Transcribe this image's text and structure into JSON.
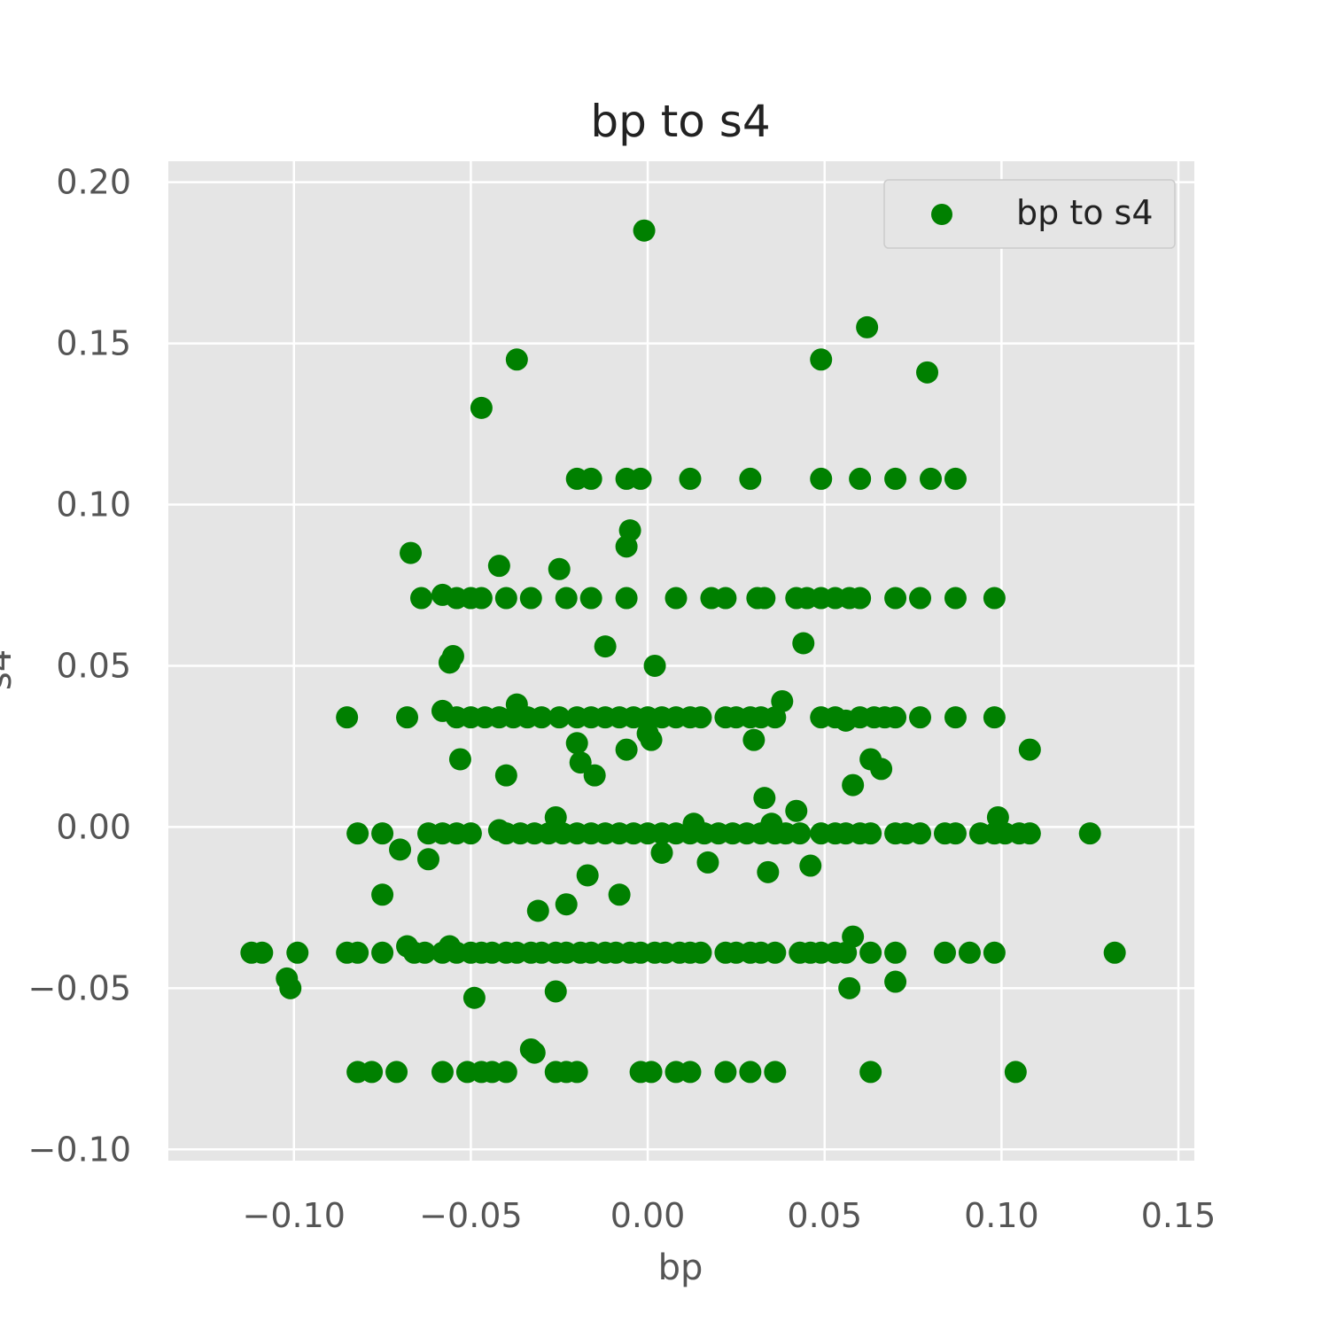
{
  "chart_data": {
    "type": "scatter",
    "title": "bp to s4",
    "xlabel": "bp",
    "ylabel": "s4",
    "xlim": [
      -0.1355,
      0.1545
    ],
    "ylim": [
      -0.1035,
      0.2065
    ],
    "x_ticks": [
      -0.1,
      -0.05,
      0.0,
      0.05,
      0.1,
      0.15
    ],
    "y_ticks": [
      -0.1,
      -0.05,
      0.0,
      0.05,
      0.1,
      0.15,
      0.2
    ],
    "x_tick_labels": [
      "−0.10",
      "−0.05",
      "0.00",
      "0.05",
      "0.10",
      "0.15"
    ],
    "y_tick_labels": [
      "−0.10",
      "−0.05",
      "0.00",
      "0.05",
      "0.10",
      "0.15",
      "0.20"
    ],
    "grid": true,
    "legend_placement": "top-right",
    "colors": {
      "series": "#008000",
      "plot_bg": "#e5e5e5",
      "grid": "#ffffff"
    },
    "series": [
      {
        "name": "bp to s4",
        "points": [
          [
            -0.001,
            0.185
          ],
          [
            0.062,
            0.155
          ],
          [
            -0.037,
            0.145
          ],
          [
            0.049,
            0.145
          ],
          [
            0.079,
            0.141
          ],
          [
            -0.047,
            0.13
          ],
          [
            -0.02,
            0.108
          ],
          [
            -0.016,
            0.108
          ],
          [
            -0.006,
            0.108
          ],
          [
            -0.002,
            0.108
          ],
          [
            0.012,
            0.108
          ],
          [
            0.029,
            0.108
          ],
          [
            0.049,
            0.108
          ],
          [
            0.06,
            0.108
          ],
          [
            0.07,
            0.108
          ],
          [
            0.08,
            0.108
          ],
          [
            0.087,
            0.108
          ],
          [
            -0.005,
            0.092
          ],
          [
            -0.006,
            0.087
          ],
          [
            -0.067,
            0.085
          ],
          [
            -0.042,
            0.081
          ],
          [
            -0.025,
            0.08
          ],
          [
            -0.064,
            0.071
          ],
          [
            -0.058,
            0.072
          ],
          [
            -0.054,
            0.071
          ],
          [
            -0.05,
            0.071
          ],
          [
            -0.047,
            0.071
          ],
          [
            -0.04,
            0.071
          ],
          [
            -0.033,
            0.071
          ],
          [
            -0.023,
            0.071
          ],
          [
            -0.016,
            0.071
          ],
          [
            -0.006,
            0.071
          ],
          [
            0.008,
            0.071
          ],
          [
            0.018,
            0.071
          ],
          [
            0.022,
            0.071
          ],
          [
            0.031,
            0.071
          ],
          [
            0.033,
            0.071
          ],
          [
            0.042,
            0.071
          ],
          [
            0.045,
            0.071
          ],
          [
            0.049,
            0.071
          ],
          [
            0.053,
            0.071
          ],
          [
            0.057,
            0.071
          ],
          [
            0.06,
            0.071
          ],
          [
            0.07,
            0.071
          ],
          [
            0.077,
            0.071
          ],
          [
            0.087,
            0.071
          ],
          [
            0.098,
            0.071
          ],
          [
            -0.012,
            0.056
          ],
          [
            0.044,
            0.057
          ],
          [
            -0.055,
            0.053
          ],
          [
            -0.056,
            0.051
          ],
          [
            0.002,
            0.05
          ],
          [
            0.038,
            0.039
          ],
          [
            -0.037,
            0.038
          ],
          [
            -0.058,
            0.036
          ],
          [
            -0.085,
            0.034
          ],
          [
            -0.068,
            0.034
          ],
          [
            -0.054,
            0.034
          ],
          [
            -0.05,
            0.034
          ],
          [
            -0.046,
            0.034
          ],
          [
            -0.042,
            0.034
          ],
          [
            -0.038,
            0.034
          ],
          [
            -0.034,
            0.034
          ],
          [
            -0.03,
            0.034
          ],
          [
            -0.025,
            0.034
          ],
          [
            -0.02,
            0.034
          ],
          [
            -0.016,
            0.034
          ],
          [
            -0.012,
            0.034
          ],
          [
            -0.008,
            0.034
          ],
          [
            -0.004,
            0.034
          ],
          [
            0.0,
            0.034
          ],
          [
            0.004,
            0.034
          ],
          [
            0.008,
            0.034
          ],
          [
            0.012,
            0.034
          ],
          [
            0.015,
            0.034
          ],
          [
            0.022,
            0.034
          ],
          [
            0.025,
            0.034
          ],
          [
            0.029,
            0.034
          ],
          [
            0.032,
            0.034
          ],
          [
            0.036,
            0.034
          ],
          [
            0.049,
            0.034
          ],
          [
            0.053,
            0.034
          ],
          [
            0.056,
            0.033
          ],
          [
            0.06,
            0.034
          ],
          [
            0.064,
            0.034
          ],
          [
            0.067,
            0.034
          ],
          [
            0.07,
            0.034
          ],
          [
            0.077,
            0.034
          ],
          [
            0.087,
            0.034
          ],
          [
            0.098,
            0.034
          ],
          [
            0.0,
            0.029
          ],
          [
            0.001,
            0.027
          ],
          [
            0.03,
            0.027
          ],
          [
            -0.02,
            0.026
          ],
          [
            -0.006,
            0.024
          ],
          [
            0.108,
            0.024
          ],
          [
            -0.053,
            0.021
          ],
          [
            0.063,
            0.021
          ],
          [
            -0.019,
            0.02
          ],
          [
            0.066,
            0.018
          ],
          [
            -0.04,
            0.016
          ],
          [
            -0.015,
            0.016
          ],
          [
            0.058,
            0.013
          ],
          [
            0.033,
            0.009
          ],
          [
            0.042,
            0.005
          ],
          [
            -0.026,
            0.003
          ],
          [
            0.099,
            0.003
          ],
          [
            0.013,
            0.001
          ],
          [
            0.035,
            0.001
          ],
          [
            -0.042,
            -0.001
          ],
          [
            -0.082,
            -0.002
          ],
          [
            -0.075,
            -0.002
          ],
          [
            -0.062,
            -0.002
          ],
          [
            -0.058,
            -0.002
          ],
          [
            -0.054,
            -0.002
          ],
          [
            -0.05,
            -0.002
          ],
          [
            -0.04,
            -0.002
          ],
          [
            -0.036,
            -0.002
          ],
          [
            -0.032,
            -0.002
          ],
          [
            -0.028,
            -0.002
          ],
          [
            -0.024,
            -0.002
          ],
          [
            -0.02,
            -0.002
          ],
          [
            -0.016,
            -0.002
          ],
          [
            -0.012,
            -0.002
          ],
          [
            -0.008,
            -0.002
          ],
          [
            -0.004,
            -0.002
          ],
          [
            0.0,
            -0.002
          ],
          [
            0.004,
            -0.002
          ],
          [
            0.008,
            -0.002
          ],
          [
            0.012,
            -0.002
          ],
          [
            0.016,
            -0.002
          ],
          [
            0.02,
            -0.002
          ],
          [
            0.024,
            -0.002
          ],
          [
            0.028,
            -0.002
          ],
          [
            0.032,
            -0.002
          ],
          [
            0.036,
            -0.002
          ],
          [
            0.039,
            -0.002
          ],
          [
            0.043,
            -0.002
          ],
          [
            0.049,
            -0.002
          ],
          [
            0.053,
            -0.002
          ],
          [
            0.056,
            -0.002
          ],
          [
            0.06,
            -0.002
          ],
          [
            0.063,
            -0.002
          ],
          [
            0.07,
            -0.002
          ],
          [
            0.073,
            -0.002
          ],
          [
            0.077,
            -0.002
          ],
          [
            0.084,
            -0.002
          ],
          [
            0.087,
            -0.002
          ],
          [
            0.094,
            -0.002
          ],
          [
            0.098,
            -0.002
          ],
          [
            0.101,
            -0.002
          ],
          [
            0.105,
            -0.002
          ],
          [
            0.108,
            -0.002
          ],
          [
            0.125,
            -0.002
          ],
          [
            -0.07,
            -0.007
          ],
          [
            0.004,
            -0.008
          ],
          [
            -0.062,
            -0.01
          ],
          [
            0.017,
            -0.011
          ],
          [
            0.046,
            -0.012
          ],
          [
            0.034,
            -0.014
          ],
          [
            -0.017,
            -0.015
          ],
          [
            -0.008,
            -0.021
          ],
          [
            -0.075,
            -0.021
          ],
          [
            -0.023,
            -0.024
          ],
          [
            -0.031,
            -0.026
          ],
          [
            0.058,
            -0.034
          ],
          [
            -0.112,
            -0.039
          ],
          [
            -0.109,
            -0.039
          ],
          [
            -0.099,
            -0.039
          ],
          [
            -0.085,
            -0.039
          ],
          [
            -0.082,
            -0.039
          ],
          [
            -0.075,
            -0.039
          ],
          [
            -0.068,
            -0.037
          ],
          [
            -0.066,
            -0.039
          ],
          [
            -0.063,
            -0.039
          ],
          [
            -0.058,
            -0.039
          ],
          [
            -0.056,
            -0.037
          ],
          [
            -0.054,
            -0.039
          ],
          [
            -0.05,
            -0.039
          ],
          [
            -0.047,
            -0.039
          ],
          [
            -0.044,
            -0.039
          ],
          [
            -0.04,
            -0.039
          ],
          [
            -0.037,
            -0.039
          ],
          [
            -0.033,
            -0.039
          ],
          [
            -0.03,
            -0.039
          ],
          [
            -0.026,
            -0.039
          ],
          [
            -0.023,
            -0.039
          ],
          [
            -0.019,
            -0.039
          ],
          [
            -0.016,
            -0.039
          ],
          [
            -0.012,
            -0.039
          ],
          [
            -0.009,
            -0.039
          ],
          [
            -0.005,
            -0.039
          ],
          [
            -0.002,
            -0.039
          ],
          [
            0.002,
            -0.039
          ],
          [
            0.005,
            -0.039
          ],
          [
            0.009,
            -0.039
          ],
          [
            0.012,
            -0.039
          ],
          [
            0.015,
            -0.039
          ],
          [
            0.022,
            -0.039
          ],
          [
            0.025,
            -0.039
          ],
          [
            0.029,
            -0.039
          ],
          [
            0.032,
            -0.039
          ],
          [
            0.036,
            -0.039
          ],
          [
            0.043,
            -0.039
          ],
          [
            0.046,
            -0.039
          ],
          [
            0.049,
            -0.039
          ],
          [
            0.053,
            -0.039
          ],
          [
            0.056,
            -0.039
          ],
          [
            0.063,
            -0.039
          ],
          [
            0.07,
            -0.039
          ],
          [
            0.084,
            -0.039
          ],
          [
            0.091,
            -0.039
          ],
          [
            0.098,
            -0.039
          ],
          [
            0.132,
            -0.039
          ],
          [
            -0.102,
            -0.047
          ],
          [
            0.07,
            -0.048
          ],
          [
            -0.101,
            -0.05
          ],
          [
            0.057,
            -0.05
          ],
          [
            -0.026,
            -0.051
          ],
          [
            -0.049,
            -0.053
          ],
          [
            -0.033,
            -0.069
          ],
          [
            -0.032,
            -0.07
          ],
          [
            -0.082,
            -0.076
          ],
          [
            -0.078,
            -0.076
          ],
          [
            -0.071,
            -0.076
          ],
          [
            -0.058,
            -0.076
          ],
          [
            -0.051,
            -0.076
          ],
          [
            -0.047,
            -0.076
          ],
          [
            -0.044,
            -0.076
          ],
          [
            -0.04,
            -0.076
          ],
          [
            -0.026,
            -0.076
          ],
          [
            -0.023,
            -0.076
          ],
          [
            -0.02,
            -0.076
          ],
          [
            -0.002,
            -0.076
          ],
          [
            0.001,
            -0.076
          ],
          [
            0.008,
            -0.076
          ],
          [
            0.012,
            -0.076
          ],
          [
            0.022,
            -0.076
          ],
          [
            0.029,
            -0.076
          ],
          [
            0.036,
            -0.076
          ],
          [
            0.063,
            -0.076
          ],
          [
            0.104,
            -0.076
          ]
        ]
      }
    ]
  }
}
